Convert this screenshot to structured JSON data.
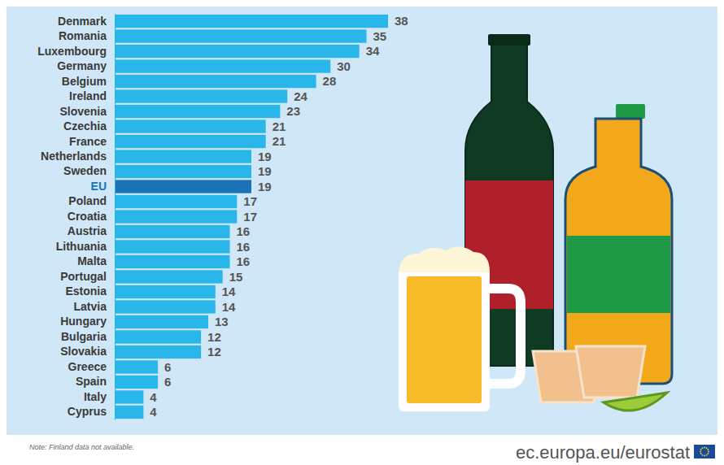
{
  "chart_data": {
    "type": "bar",
    "orientation": "horizontal",
    "categories": [
      "Denmark",
      "Romania",
      "Luxembourg",
      "Germany",
      "Belgium",
      "Ireland",
      "Slovenia",
      "Czechia",
      "France",
      "Netherlands",
      "Sweden",
      "EU",
      "Poland",
      "Croatia",
      "Austria",
      "Lithuania",
      "Malta",
      "Portugal",
      "Estonia",
      "Latvia",
      "Hungary",
      "Bulgaria",
      "Slovakia",
      "Greece",
      "Spain",
      "Italy",
      "Cyprus"
    ],
    "values": [
      38,
      35,
      34,
      30,
      28,
      24,
      23,
      21,
      21,
      19,
      19,
      19,
      17,
      17,
      16,
      16,
      16,
      15,
      14,
      14,
      13,
      12,
      12,
      6,
      6,
      4,
      4
    ],
    "colors": [
      "#29b6ea",
      "#29b6ea",
      "#29b6ea",
      "#29b6ea",
      "#29b6ea",
      "#29b6ea",
      "#29b6ea",
      "#29b6ea",
      "#29b6ea",
      "#29b6ea",
      "#29b6ea",
      "#1a73b8",
      "#29b6ea",
      "#29b6ea",
      "#29b6ea",
      "#29b6ea",
      "#29b6ea",
      "#29b6ea",
      "#29b6ea",
      "#29b6ea",
      "#29b6ea",
      "#29b6ea",
      "#29b6ea",
      "#29b6ea",
      "#29b6ea",
      "#29b6ea",
      "#29b6ea"
    ],
    "xlim": [
      0,
      38
    ],
    "data_labels": true,
    "tick_labels": false,
    "grid": false,
    "note": "Note: Finland data not available.",
    "source": "ec.europa.eu/eurostat"
  }
}
